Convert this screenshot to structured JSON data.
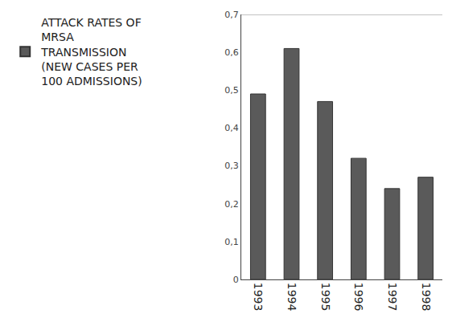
{
  "chart_data": {
    "type": "bar",
    "categories": [
      "1993",
      "1994",
      "1995",
      "1996",
      "1997",
      "1998"
    ],
    "series": [
      {
        "name": "ATTACK RATES OF MRSA TRANSMISSION (NEW CASES PER 100 ADMISSIONS)",
        "color": "#5a5a5a",
        "values": [
          0.49,
          0.61,
          0.47,
          0.32,
          0.24,
          0.27
        ]
      }
    ],
    "ylim": [
      0,
      0.7
    ],
    "yticks": [
      0,
      {
        "value": 0.1,
        "label": "0,1"
      },
      {
        "value": 0.2,
        "label": "0,2"
      },
      {
        "value": 0.3,
        "label": "0,3"
      },
      {
        "value": 0.4,
        "label": "0,4"
      },
      {
        "value": 0.5,
        "label": "0,5"
      },
      {
        "value": 0.6,
        "label": "0,6"
      },
      {
        "value": 0.7,
        "label": "0,7"
      }
    ],
    "grid": false,
    "legend": "left"
  }
}
